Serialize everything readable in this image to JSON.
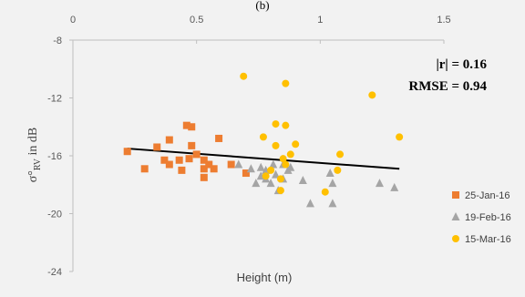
{
  "figure_label_fragment": "(b)",
  "stats": {
    "r_text": "|r| = 0.16",
    "rmse_text": "RMSE = 0.94"
  },
  "chart_data": {
    "type": "scatter",
    "xlabel": "Height (m)",
    "ylabel": "σ°",
    "ylabel_sub": "RV",
    "ylabel_suffix": " in dB",
    "xlim": [
      0,
      1.5
    ],
    "ylim": [
      -24,
      -8
    ],
    "x_ticks": [
      {
        "value": 0,
        "label": "0"
      },
      {
        "value": 0.5,
        "label": "0.5"
      },
      {
        "value": 1,
        "label": "1"
      },
      {
        "value": 1.5,
        "label": "1.5"
      }
    ],
    "y_ticks": [
      {
        "value": -8,
        "label": "-8"
      },
      {
        "value": -12,
        "label": "-12"
      },
      {
        "value": -16,
        "label": "-16"
      },
      {
        "value": -20,
        "label": "-20"
      },
      {
        "value": -24,
        "label": "-24"
      }
    ],
    "legend_position": "right",
    "trendline": {
      "type": "linear",
      "color": "#000000",
      "x": [
        0.22,
        1.32
      ],
      "y": [
        -15.5,
        -16.9
      ]
    },
    "series": [
      {
        "name": "25-Jan-16",
        "marker": "square",
        "color": "#ed7d31",
        "points": [
          [
            0.22,
            -15.7
          ],
          [
            0.29,
            -16.9
          ],
          [
            0.34,
            -15.4
          ],
          [
            0.37,
            -16.3
          ],
          [
            0.39,
            -16.6
          ],
          [
            0.39,
            -14.9
          ],
          [
            0.43,
            -16.3
          ],
          [
            0.44,
            -17.0
          ],
          [
            0.46,
            -13.9
          ],
          [
            0.47,
            -16.2
          ],
          [
            0.48,
            -15.3
          ],
          [
            0.48,
            -14.0
          ],
          [
            0.5,
            -15.9
          ],
          [
            0.53,
            -16.3
          ],
          [
            0.53,
            -16.9
          ],
          [
            0.53,
            -17.5
          ],
          [
            0.55,
            -16.6
          ],
          [
            0.57,
            -16.9
          ],
          [
            0.59,
            -14.8
          ],
          [
            0.64,
            -16.6
          ],
          [
            0.7,
            -17.2
          ]
        ]
      },
      {
        "name": "19-Feb-16",
        "marker": "triangle",
        "color": "#a5a5a5",
        "points": [
          [
            0.67,
            -16.6
          ],
          [
            0.72,
            -16.9
          ],
          [
            0.74,
            -17.9
          ],
          [
            0.76,
            -16.8
          ],
          [
            0.76,
            -17.4
          ],
          [
            0.78,
            -17.6
          ],
          [
            0.78,
            -17.0
          ],
          [
            0.8,
            -17.9
          ],
          [
            0.81,
            -16.6
          ],
          [
            0.82,
            -17.3
          ],
          [
            0.83,
            -18.4
          ],
          [
            0.85,
            -17.6
          ],
          [
            0.85,
            -16.6
          ],
          [
            0.87,
            -17.0
          ],
          [
            0.88,
            -16.8
          ],
          [
            0.93,
            -17.7
          ],
          [
            0.96,
            -19.3
          ],
          [
            1.04,
            -17.2
          ],
          [
            1.05,
            -17.9
          ],
          [
            1.05,
            -19.3
          ],
          [
            1.24,
            -17.9
          ],
          [
            1.3,
            -18.2
          ]
        ]
      },
      {
        "name": "15-Mar-16",
        "marker": "circle",
        "color": "#ffc000",
        "points": [
          [
            0.69,
            -10.5
          ],
          [
            0.86,
            -11.0
          ],
          [
            0.82,
            -13.8
          ],
          [
            0.86,
            -13.9
          ],
          [
            0.77,
            -14.7
          ],
          [
            0.82,
            -15.3
          ],
          [
            0.9,
            -15.2
          ],
          [
            0.88,
            -15.9
          ],
          [
            0.85,
            -16.2
          ],
          [
            0.86,
            -16.6
          ],
          [
            0.8,
            -17.0
          ],
          [
            0.78,
            -17.4
          ],
          [
            0.84,
            -17.6
          ],
          [
            0.84,
            -18.4
          ],
          [
            1.02,
            -18.5
          ],
          [
            1.07,
            -17.0
          ],
          [
            1.08,
            -15.9
          ],
          [
            1.21,
            -11.8
          ],
          [
            1.32,
            -14.7
          ]
        ]
      }
    ]
  }
}
